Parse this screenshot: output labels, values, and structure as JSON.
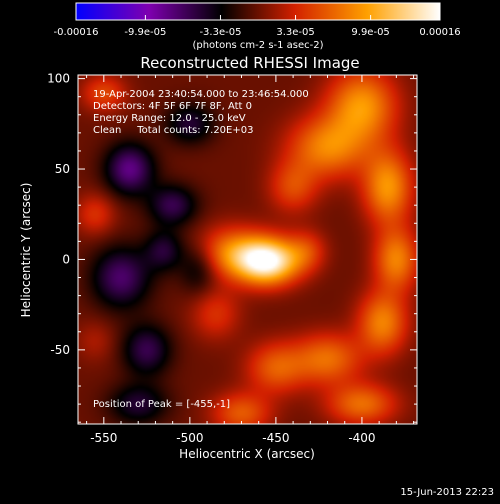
{
  "chart_data": {
    "type": "heatmap",
    "title": "Reconstructed RHESSI Image",
    "xlabel": "Heliocentric X (arcsec)",
    "ylabel": "Heliocentric Y (arcsec)",
    "xlim": [
      -565,
      -368
    ],
    "ylim": [
      -91,
      102
    ],
    "x_ticks": [
      -550,
      -500,
      -450,
      -400
    ],
    "y_ticks": [
      -50,
      0,
      50,
      100
    ],
    "colorbar": {
      "min": -0.00016,
      "max": 0.00016,
      "tick_values": [
        -0.00016,
        -9.9e-05,
        -3.3e-05,
        3.3e-05,
        9.9e-05,
        0.00016
      ],
      "tick_labels": [
        "-0.00016",
        "-9.9e-05",
        "-3.3e-05",
        "3.3e-05",
        "9.9e-05",
        "0.00016"
      ],
      "unit_label": "(photons cm-2 s-1 asec-2)",
      "colors": [
        "#0000ff",
        "#7f00b0",
        "#000000",
        "#d22000",
        "#ffa000",
        "#ffffff"
      ]
    },
    "annotations": [
      "19-Apr-2004 23:40:54.000 to 23:46:54.000",
      "Detectors: 4F 5F 6F 7F 8F, Att 0",
      "Energy Range: 12.0 - 25.0 keV",
      "Clean     Total counts: 7.20E+03"
    ],
    "peak_label": "Position of Peak = [-455,-1]",
    "peak": [
      -455,
      -1
    ],
    "sources": [
      {
        "x": -455,
        "y": -1,
        "value": 0.00016,
        "sx": 13,
        "sy": 9
      },
      {
        "x": -476,
        "y": 4,
        "value": 7e-05,
        "sx": 14,
        "sy": 10
      },
      {
        "x": -432,
        "y": 5,
        "value": 4e-05,
        "sx": 8,
        "sy": 8
      },
      {
        "x": -420,
        "y": 62,
        "value": 8e-05,
        "sx": 16,
        "sy": 12
      },
      {
        "x": -400,
        "y": 85,
        "value": 9e-05,
        "sx": 14,
        "sy": 14
      },
      {
        "x": -385,
        "y": 40,
        "value": 9e-05,
        "sx": 10,
        "sy": 14
      },
      {
        "x": -380,
        "y": 0,
        "value": 8e-05,
        "sx": 9,
        "sy": 12
      },
      {
        "x": -388,
        "y": -35,
        "value": 8e-05,
        "sx": 10,
        "sy": 12
      },
      {
        "x": -420,
        "y": -55,
        "value": 7e-05,
        "sx": 14,
        "sy": 10
      },
      {
        "x": -450,
        "y": -60,
        "value": 6e-05,
        "sx": 12,
        "sy": 10
      },
      {
        "x": -470,
        "y": -85,
        "value": 6e-05,
        "sx": 12,
        "sy": 8
      },
      {
        "x": -400,
        "y": -80,
        "value": 7e-05,
        "sx": 14,
        "sy": 8
      },
      {
        "x": -440,
        "y": 40,
        "value": 5e-05,
        "sx": 10,
        "sy": 10
      },
      {
        "x": -485,
        "y": -30,
        "value": 4e-05,
        "sx": 10,
        "sy": 10
      },
      {
        "x": -555,
        "y": 25,
        "value": 4e-05,
        "sx": 8,
        "sy": 8
      },
      {
        "x": -550,
        "y": 92,
        "value": 5e-05,
        "sx": 9,
        "sy": 7
      },
      {
        "x": -555,
        "y": -45,
        "value": 2e-05,
        "sx": 8,
        "sy": 8
      },
      {
        "x": -535,
        "y": 50,
        "value": -8e-05,
        "sx": 10,
        "sy": 10
      },
      {
        "x": -510,
        "y": 30,
        "value": -6e-05,
        "sx": 10,
        "sy": 8
      },
      {
        "x": -540,
        "y": -10,
        "value": -7e-05,
        "sx": 12,
        "sy": 12
      },
      {
        "x": -525,
        "y": -50,
        "value": -6e-05,
        "sx": 10,
        "sy": 10
      },
      {
        "x": -530,
        "y": -80,
        "value": -5e-05,
        "sx": 12,
        "sy": 8
      },
      {
        "x": -500,
        "y": 75,
        "value": -5e-05,
        "sx": 10,
        "sy": 8
      },
      {
        "x": -495,
        "y": -5,
        "value": -4e-05,
        "sx": 8,
        "sy": 10
      },
      {
        "x": -515,
        "y": 5,
        "value": -5e-05,
        "sx": 8,
        "sy": 8
      }
    ]
  },
  "footer": {
    "timestamp": "15-Jun-2013 22:23"
  }
}
